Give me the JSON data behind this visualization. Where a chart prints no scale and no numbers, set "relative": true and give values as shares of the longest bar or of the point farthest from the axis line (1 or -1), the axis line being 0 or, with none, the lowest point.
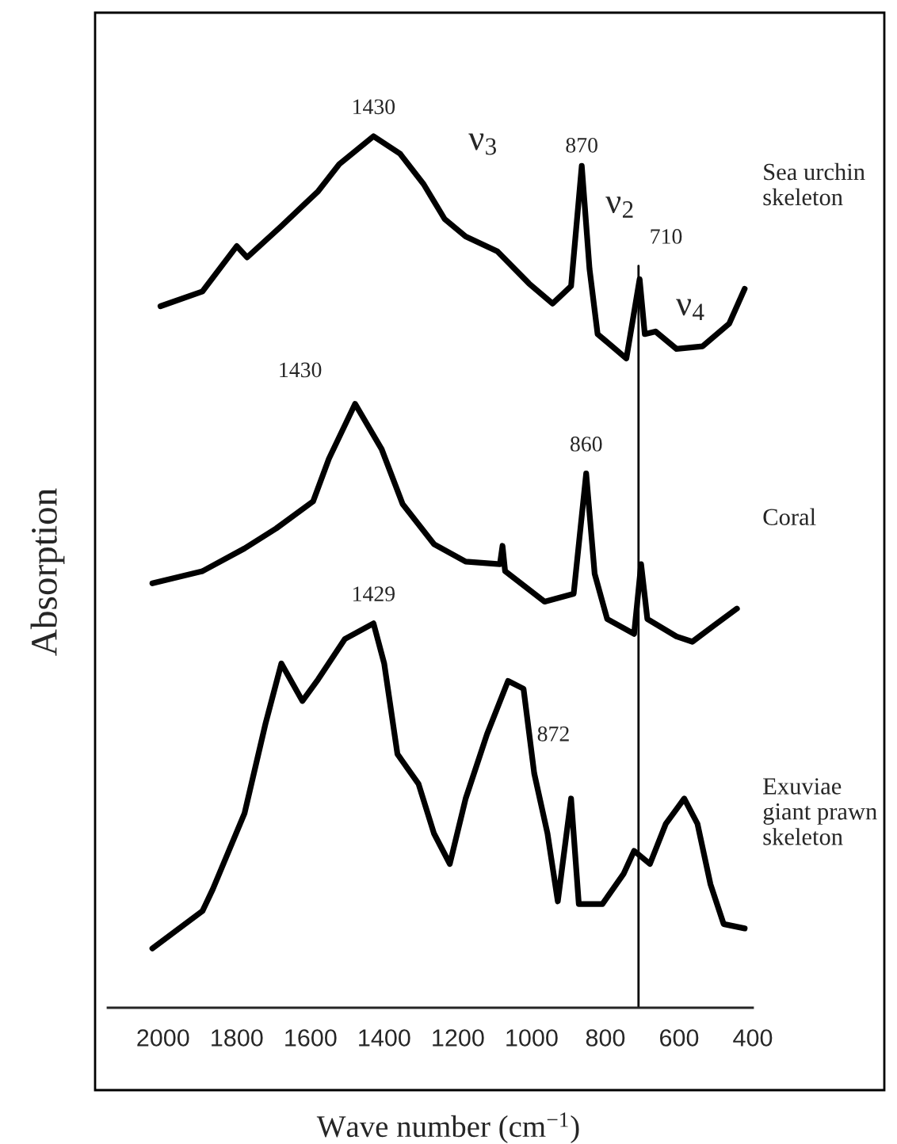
{
  "chart_data": {
    "type": "line",
    "relative": true,
    "xlabel": "Wave number (cm$^{−1}$)",
    "ylabel": "Absorption",
    "xlim": [
      2150,
      400
    ],
    "xticks": [
      2000,
      1800,
      1600,
      1400,
      1200,
      1000,
      800,
      600,
      400
    ],
    "grid": false,
    "legend": false,
    "marker": "none",
    "line_style": "solid",
    "series": [
      {
        "name": "Sea urchin\nskeleton",
        "color": "#000000",
        "x": [
          2007,
          1893,
          1800,
          1772,
          1679,
          1579,
          1522,
          1429,
          1357,
          1293,
          1236,
          1179,
          1093,
          1007,
          943,
          893,
          864,
          843,
          821,
          743,
          707,
          693,
          664,
          607,
          536,
          464,
          422
        ],
        "values": [
          0.805,
          0.822,
          0.874,
          0.861,
          0.897,
          0.937,
          0.968,
          1.0,
          0.98,
          0.945,
          0.905,
          0.885,
          0.868,
          0.831,
          0.808,
          0.828,
          0.966,
          0.848,
          0.773,
          0.745,
          0.836,
          0.773,
          0.776,
          0.756,
          0.759,
          0.785,
          0.825
        ]
      },
      {
        "name": "Coral",
        "color": "#000000",
        "x": [
          2029,
          1893,
          1779,
          1693,
          1593,
          1550,
          1479,
          1407,
          1350,
          1265,
          1179,
          1086,
          1079,
          1072,
          965,
          886,
          852,
          829,
          795,
          722,
          703,
          686,
          607,
          564,
          507,
          443
        ],
        "values": [
          0.487,
          0.501,
          0.527,
          0.55,
          0.581,
          0.63,
          0.693,
          0.641,
          0.578,
          0.532,
          0.512,
          0.509,
          0.53,
          0.501,
          0.466,
          0.475,
          0.613,
          0.498,
          0.446,
          0.429,
          0.509,
          0.446,
          0.426,
          0.42,
          0.438,
          0.458
        ]
      },
      {
        "name": "Exuviae\ngiant prawn\nskeleton",
        "color": "#000000",
        "x": [
          2029,
          1893,
          1865,
          1779,
          1722,
          1679,
          1622,
          1579,
          1507,
          1429,
          1400,
          1364,
          1307,
          1265,
          1222,
          1179,
          1121,
          1064,
          1022,
          993,
          957,
          929,
          893,
          872,
          808,
          750,
          722,
          679,
          636,
          586,
          550,
          515,
          479,
          422
        ],
        "values": [
          0.068,
          0.111,
          0.136,
          0.223,
          0.326,
          0.395,
          0.352,
          0.377,
          0.423,
          0.441,
          0.395,
          0.291,
          0.257,
          0.2,
          0.165,
          0.24,
          0.314,
          0.375,
          0.366,
          0.269,
          0.2,
          0.122,
          0.24,
          0.119,
          0.119,
          0.154,
          0.18,
          0.165,
          0.211,
          0.24,
          0.211,
          0.142,
          0.096,
          0.091
        ]
      }
    ],
    "ref_lines": [
      {
        "axis": "x",
        "value": 710,
        "color": "#000000",
        "line_style": "solid"
      }
    ],
    "annotations": [
      {
        "text": "1430",
        "x": 1429,
        "y": 1.0
      },
      {
        "text": "870",
        "x": 864,
        "y": 0.966
      },
      {
        "text": "710",
        "x": 707,
        "y": 0.836
      },
      {
        "text": "ν$_{3}$",
        "x": 1179,
        "y": 0.885
      },
      {
        "text": "ν$_{2}$",
        "x": 843,
        "y": 0.848
      },
      {
        "text": "ν$_{4}$",
        "x": 664,
        "y": 0.776
      },
      {
        "text": "1430",
        "x": 1479,
        "y": 0.693
      },
      {
        "text": "860",
        "x": 852,
        "y": 0.613
      },
      {
        "text": "1429",
        "x": 1429,
        "y": 0.441
      },
      {
        "text": "872",
        "x": 893,
        "y": 0.24
      }
    ]
  }
}
